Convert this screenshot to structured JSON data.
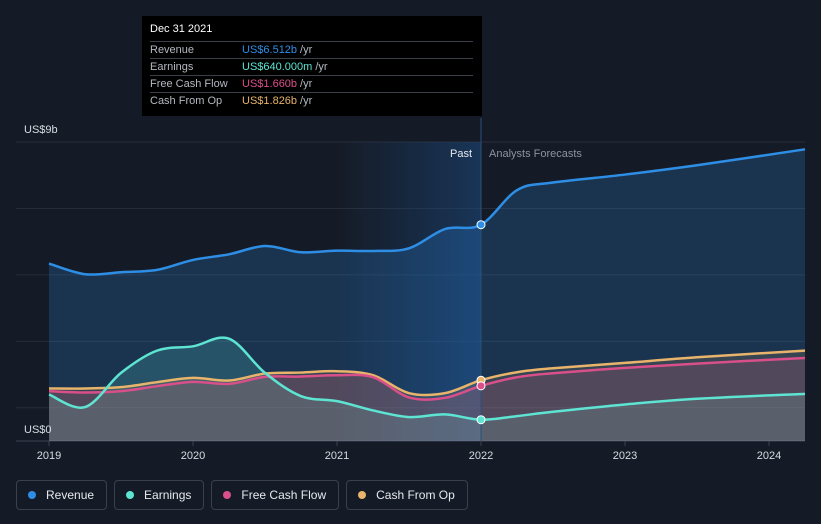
{
  "chart_data": {
    "type": "line",
    "y_unit_label_top": "US$9b",
    "y_unit_label_bottom": "US$0",
    "ylim": [
      0,
      9
    ],
    "xlim": [
      2019.0,
      2024.25
    ],
    "x_ticks": [
      {
        "value": 2019,
        "label": "2019"
      },
      {
        "value": 2020,
        "label": "2020"
      },
      {
        "value": 2021,
        "label": "2021"
      },
      {
        "value": 2022,
        "label": "2022"
      },
      {
        "value": 2023,
        "label": "2023"
      },
      {
        "value": 2024,
        "label": "2024"
      }
    ],
    "past_label": "Past",
    "forecast_label": "Analysts Forecasts",
    "divider_x": 2022.0,
    "highlight_start_x": 2021.0,
    "series": [
      {
        "key": "revenue",
        "name": "Revenue",
        "color": "#2e8ee6",
        "points": [
          [
            2019.0,
            5.34
          ],
          [
            2019.25,
            5.02
          ],
          [
            2019.5,
            5.08
          ],
          [
            2019.75,
            5.15
          ],
          [
            2020.0,
            5.45
          ],
          [
            2020.25,
            5.62
          ],
          [
            2020.5,
            5.87
          ],
          [
            2020.75,
            5.68
          ],
          [
            2021.0,
            5.73
          ],
          [
            2021.25,
            5.72
          ],
          [
            2021.5,
            5.8
          ],
          [
            2021.75,
            6.38
          ],
          [
            2022.0,
            6.51
          ],
          [
            2022.25,
            7.55
          ],
          [
            2022.5,
            7.78
          ],
          [
            2023.0,
            8.02
          ],
          [
            2023.5,
            8.3
          ],
          [
            2024.25,
            8.78
          ]
        ]
      },
      {
        "key": "earnings",
        "name": "Earnings",
        "color": "#5ee4d2",
        "points": [
          [
            2019.0,
            1.4
          ],
          [
            2019.25,
            1.02
          ],
          [
            2019.5,
            2.05
          ],
          [
            2019.75,
            2.72
          ],
          [
            2020.0,
            2.85
          ],
          [
            2020.25,
            3.08
          ],
          [
            2020.5,
            2.05
          ],
          [
            2020.75,
            1.35
          ],
          [
            2021.0,
            1.2
          ],
          [
            2021.25,
            0.92
          ],
          [
            2021.5,
            0.72
          ],
          [
            2021.75,
            0.8
          ],
          [
            2022.0,
            0.64
          ],
          [
            2022.25,
            0.75
          ],
          [
            2022.5,
            0.88
          ],
          [
            2023.0,
            1.1
          ],
          [
            2023.5,
            1.27
          ],
          [
            2024.25,
            1.42
          ]
        ]
      },
      {
        "key": "fcf",
        "name": "Free Cash Flow",
        "color": "#d94f8a",
        "points": [
          [
            2019.0,
            1.5
          ],
          [
            2019.25,
            1.46
          ],
          [
            2019.5,
            1.5
          ],
          [
            2019.75,
            1.65
          ],
          [
            2020.0,
            1.78
          ],
          [
            2020.25,
            1.72
          ],
          [
            2020.5,
            1.93
          ],
          [
            2020.75,
            1.94
          ],
          [
            2021.0,
            1.98
          ],
          [
            2021.25,
            1.92
          ],
          [
            2021.5,
            1.31
          ],
          [
            2021.75,
            1.3
          ],
          [
            2022.0,
            1.66
          ],
          [
            2022.25,
            1.92
          ],
          [
            2022.5,
            2.04
          ],
          [
            2023.0,
            2.2
          ],
          [
            2023.5,
            2.33
          ],
          [
            2024.25,
            2.5
          ]
        ]
      },
      {
        "key": "cfo",
        "name": "Cash From Op",
        "color": "#e8b36a",
        "points": [
          [
            2019.0,
            1.58
          ],
          [
            2019.25,
            1.58
          ],
          [
            2019.5,
            1.62
          ],
          [
            2019.75,
            1.77
          ],
          [
            2020.0,
            1.9
          ],
          [
            2020.25,
            1.82
          ],
          [
            2020.5,
            2.03
          ],
          [
            2020.75,
            2.06
          ],
          [
            2021.0,
            2.1
          ],
          [
            2021.25,
            1.98
          ],
          [
            2021.5,
            1.44
          ],
          [
            2021.75,
            1.44
          ],
          [
            2022.0,
            1.83
          ],
          [
            2022.25,
            2.07
          ],
          [
            2022.5,
            2.19
          ],
          [
            2023.0,
            2.35
          ],
          [
            2023.5,
            2.52
          ],
          [
            2024.25,
            2.72
          ]
        ]
      }
    ],
    "marker_x": 2022.0
  },
  "tooltip": {
    "date": "Dec 31 2021",
    "rows": [
      {
        "label": "Revenue",
        "value": "US$6.512b",
        "unit": "/yr",
        "color": "#2e8ee6"
      },
      {
        "label": "Earnings",
        "value": "US$640.000m",
        "unit": "/yr",
        "color": "#5ee4d2"
      },
      {
        "label": "Free Cash Flow",
        "value": "US$1.660b",
        "unit": "/yr",
        "color": "#d94f8a"
      },
      {
        "label": "Cash From Op",
        "value": "US$1.826b",
        "unit": "/yr",
        "color": "#e8b36a"
      }
    ]
  },
  "legend": [
    {
      "label": "Revenue",
      "color": "#2e8ee6"
    },
    {
      "label": "Earnings",
      "color": "#5ee4d2"
    },
    {
      "label": "Free Cash Flow",
      "color": "#d94f8a"
    },
    {
      "label": "Cash From Op",
      "color": "#e8b36a"
    }
  ]
}
